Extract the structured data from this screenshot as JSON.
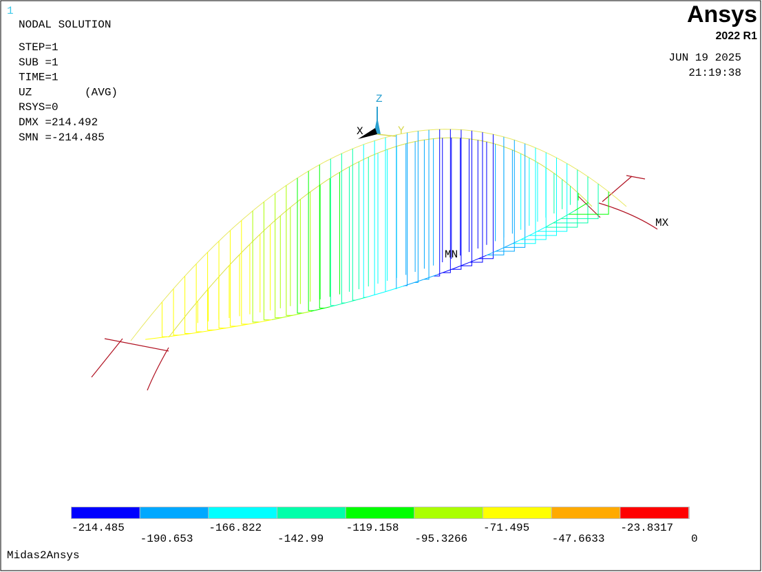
{
  "window": {
    "number": "1",
    "info": [
      "NODAL SOLUTION",
      "STEP=1",
      "SUB =1",
      "TIME=1",
      "UZ        (AVG)",
      "RSYS=0",
      "DMX =214.492",
      "SMN =-214.485"
    ],
    "brand": "Ansys",
    "release": "2022 R1",
    "date": "JUN 19 2025",
    "time": "21:19:38",
    "triad": {
      "z": "Z",
      "x": "X",
      "y": "Y"
    },
    "markers": {
      "min": "MN",
      "max": "MX"
    },
    "legend": {
      "colors": [
        "#0000ff",
        "#00a8ff",
        "#00ffff",
        "#00ffaa",
        "#00ff00",
        "#aaff00",
        "#ffff00",
        "#ffaa00",
        "#ff0000"
      ],
      "labels": [
        "-214.485",
        "-190.653",
        "-166.822",
        "-142.99",
        "-119.158",
        "-95.3266",
        "-71.495",
        "-47.6633",
        "-23.8317",
        "0"
      ]
    },
    "footer": "Midas2Ansys"
  }
}
